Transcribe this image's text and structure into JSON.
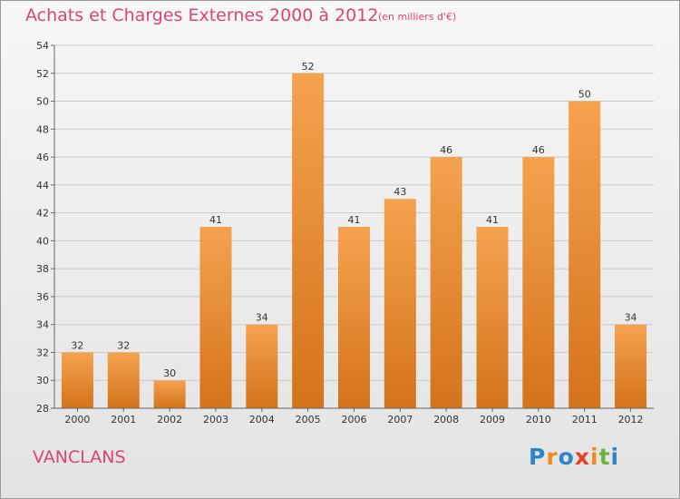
{
  "chart_data": {
    "type": "bar",
    "title": "Achats et Charges Externes 2000 à 2012",
    "subtitle": "(en milliers d'€)",
    "categories": [
      "2000",
      "2001",
      "2002",
      "2003",
      "2004",
      "2005",
      "2006",
      "2007",
      "2008",
      "2009",
      "2010",
      "2011",
      "2012"
    ],
    "values": [
      32,
      32,
      30,
      41,
      34,
      52,
      41,
      43,
      46,
      41,
      46,
      50,
      34
    ],
    "ylim": [
      28,
      54
    ],
    "yticks": [
      28,
      30,
      32,
      34,
      36,
      38,
      40,
      42,
      44,
      46,
      48,
      50,
      52,
      54
    ],
    "grid": true,
    "bar_color_top": "#f5a24f",
    "bar_color_bottom": "#d4731b"
  },
  "place_name": "VANCLANS",
  "logo": {
    "letters": [
      "P",
      "r",
      "o",
      "x",
      "i",
      "t",
      "i"
    ],
    "colors": [
      "#2e86c9",
      "#f08a1e",
      "#2e86c9",
      "#e8412b",
      "#f08a1e",
      "#6cb33f",
      "#2e86c9"
    ]
  }
}
